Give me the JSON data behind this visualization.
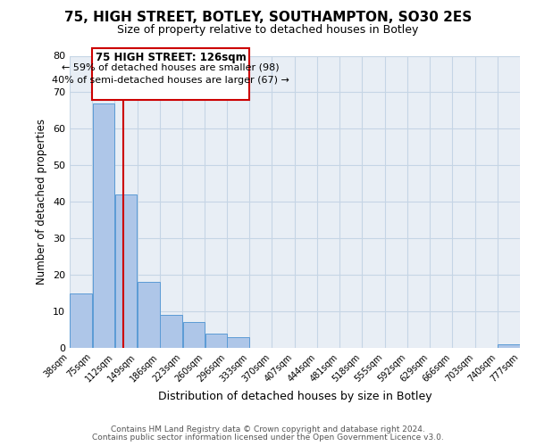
{
  "title": "75, HIGH STREET, BOTLEY, SOUTHAMPTON, SO30 2ES",
  "subtitle": "Size of property relative to detached houses in Botley",
  "xlabel": "Distribution of detached houses by size in Botley",
  "ylabel": "Number of detached properties",
  "bar_color": "#aec6e8",
  "bar_edge_color": "#5b9bd5",
  "background_color": "#ffffff",
  "plot_bg_color": "#e8eef5",
  "grid_color": "#c5d5e5",
  "annotation_box_color": "#ffffff",
  "annotation_box_edge": "#cc0000",
  "red_line_color": "#cc0000",
  "red_line_x": 126,
  "annotation_line1": "75 HIGH STREET: 126sqm",
  "annotation_line2": "← 59% of detached houses are smaller (98)",
  "annotation_line3": "40% of semi-detached houses are larger (67) →",
  "bins": [
    38,
    75,
    112,
    149,
    186,
    223,
    260,
    296,
    333,
    370,
    407,
    444,
    481,
    518,
    555,
    592,
    629,
    666,
    703,
    740,
    777
  ],
  "counts": [
    15,
    67,
    42,
    18,
    9,
    7,
    4,
    3,
    0,
    0,
    0,
    0,
    0,
    0,
    0,
    0,
    0,
    0,
    0,
    1
  ],
  "ylim": [
    0,
    80
  ],
  "yticks": [
    0,
    10,
    20,
    30,
    40,
    50,
    60,
    70,
    80
  ],
  "footer_line1": "Contains HM Land Registry data © Crown copyright and database right 2024.",
  "footer_line2": "Contains public sector information licensed under the Open Government Licence v3.0."
}
